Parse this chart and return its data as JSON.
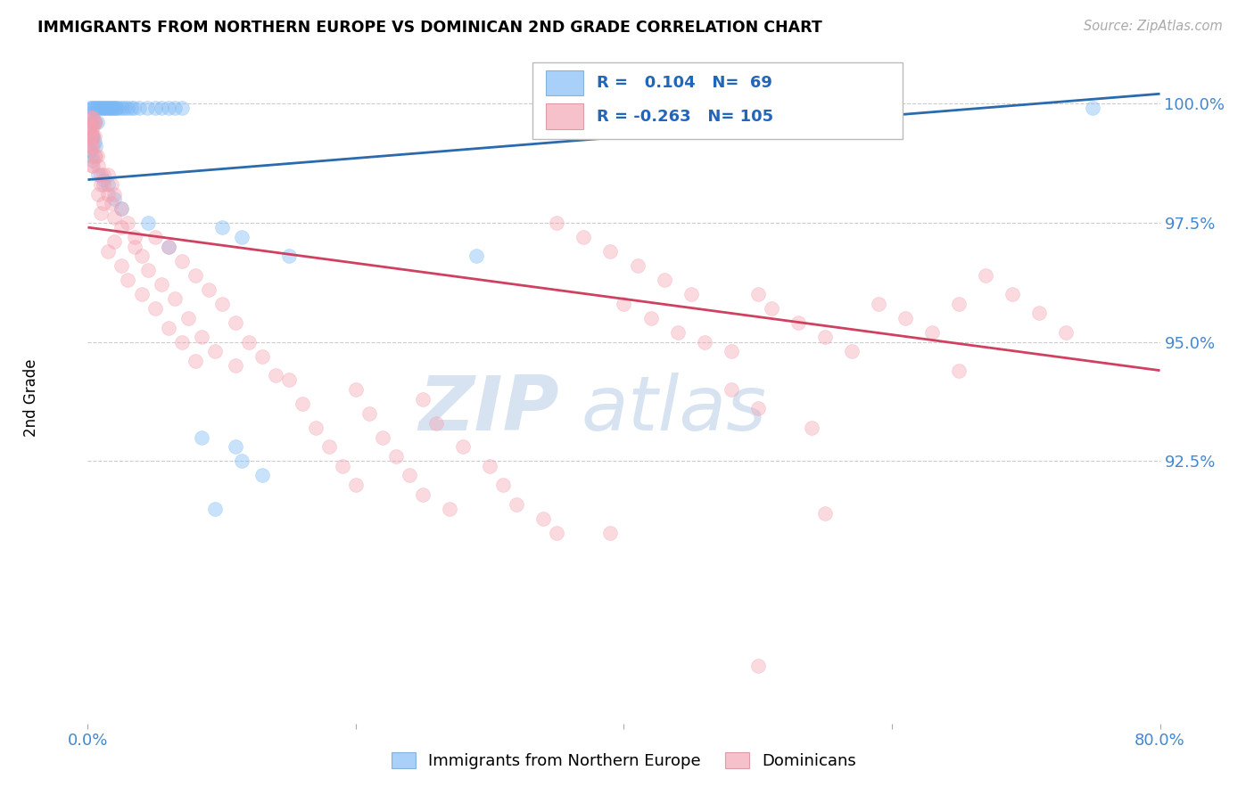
{
  "title": "IMMIGRANTS FROM NORTHERN EUROPE VS DOMINICAN 2ND GRADE CORRELATION CHART",
  "source": "Source: ZipAtlas.com",
  "ylabel": "2nd Grade",
  "ytick_labels": [
    "92.5%",
    "95.0%",
    "97.5%",
    "100.0%"
  ],
  "ytick_values": [
    0.925,
    0.95,
    0.975,
    1.0
  ],
  "xlim": [
    0.0,
    0.8
  ],
  "ylim": [
    0.87,
    1.01
  ],
  "legend_label1": "Immigrants from Northern Europe",
  "legend_label2": "Dominicans",
  "R1": "0.104",
  "N1": "69",
  "R2": "-0.263",
  "N2": "105",
  "blue_scatter": [
    [
      0.002,
      0.999
    ],
    [
      0.003,
      0.999
    ],
    [
      0.004,
      0.999
    ],
    [
      0.005,
      0.999
    ],
    [
      0.006,
      0.999
    ],
    [
      0.007,
      0.999
    ],
    [
      0.008,
      0.999
    ],
    [
      0.009,
      0.999
    ],
    [
      0.01,
      0.999
    ],
    [
      0.011,
      0.999
    ],
    [
      0.012,
      0.999
    ],
    [
      0.013,
      0.999
    ],
    [
      0.014,
      0.999
    ],
    [
      0.015,
      0.999
    ],
    [
      0.016,
      0.999
    ],
    [
      0.017,
      0.999
    ],
    [
      0.018,
      0.999
    ],
    [
      0.019,
      0.999
    ],
    [
      0.02,
      0.999
    ],
    [
      0.021,
      0.999
    ],
    [
      0.022,
      0.999
    ],
    [
      0.024,
      0.999
    ],
    [
      0.026,
      0.999
    ],
    [
      0.028,
      0.999
    ],
    [
      0.03,
      0.999
    ],
    [
      0.032,
      0.999
    ],
    [
      0.034,
      0.999
    ],
    [
      0.038,
      0.999
    ],
    [
      0.044,
      0.999
    ],
    [
      0.05,
      0.999
    ],
    [
      0.055,
      0.999
    ],
    [
      0.06,
      0.999
    ],
    [
      0.065,
      0.999
    ],
    [
      0.07,
      0.999
    ],
    [
      0.002,
      0.996
    ],
    [
      0.003,
      0.996
    ],
    [
      0.005,
      0.996
    ],
    [
      0.007,
      0.996
    ],
    [
      0.003,
      0.993
    ],
    [
      0.004,
      0.993
    ],
    [
      0.005,
      0.992
    ],
    [
      0.006,
      0.991
    ],
    [
      0.002,
      0.99
    ],
    [
      0.003,
      0.989
    ],
    [
      0.004,
      0.988
    ],
    [
      0.008,
      0.985
    ],
    [
      0.012,
      0.984
    ],
    [
      0.015,
      0.983
    ],
    [
      0.02,
      0.98
    ],
    [
      0.025,
      0.978
    ],
    [
      0.045,
      0.975
    ],
    [
      0.1,
      0.974
    ],
    [
      0.115,
      0.972
    ],
    [
      0.06,
      0.97
    ],
    [
      0.15,
      0.968
    ],
    [
      0.29,
      0.968
    ],
    [
      0.75,
      0.999
    ],
    [
      0.085,
      0.93
    ],
    [
      0.11,
      0.928
    ],
    [
      0.115,
      0.925
    ],
    [
      0.13,
      0.922
    ],
    [
      0.095,
      0.915
    ]
  ],
  "pink_scatter": [
    [
      0.002,
      0.997
    ],
    [
      0.003,
      0.997
    ],
    [
      0.004,
      0.997
    ],
    [
      0.005,
      0.996
    ],
    [
      0.006,
      0.996
    ],
    [
      0.001,
      0.995
    ],
    [
      0.002,
      0.995
    ],
    [
      0.003,
      0.995
    ],
    [
      0.004,
      0.995
    ],
    [
      0.001,
      0.993
    ],
    [
      0.002,
      0.993
    ],
    [
      0.003,
      0.993
    ],
    [
      0.004,
      0.993
    ],
    [
      0.005,
      0.993
    ],
    [
      0.001,
      0.991
    ],
    [
      0.002,
      0.991
    ],
    [
      0.003,
      0.991
    ],
    [
      0.004,
      0.991
    ],
    [
      0.005,
      0.989
    ],
    [
      0.006,
      0.989
    ],
    [
      0.007,
      0.989
    ],
    [
      0.003,
      0.987
    ],
    [
      0.004,
      0.987
    ],
    [
      0.008,
      0.987
    ],
    [
      0.01,
      0.985
    ],
    [
      0.012,
      0.985
    ],
    [
      0.015,
      0.985
    ],
    [
      0.01,
      0.983
    ],
    [
      0.012,
      0.983
    ],
    [
      0.018,
      0.983
    ],
    [
      0.008,
      0.981
    ],
    [
      0.015,
      0.981
    ],
    [
      0.02,
      0.981
    ],
    [
      0.012,
      0.979
    ],
    [
      0.018,
      0.979
    ],
    [
      0.025,
      0.978
    ],
    [
      0.01,
      0.977
    ],
    [
      0.02,
      0.976
    ],
    [
      0.03,
      0.975
    ],
    [
      0.025,
      0.974
    ],
    [
      0.035,
      0.972
    ],
    [
      0.05,
      0.972
    ],
    [
      0.02,
      0.971
    ],
    [
      0.035,
      0.97
    ],
    [
      0.06,
      0.97
    ],
    [
      0.015,
      0.969
    ],
    [
      0.04,
      0.968
    ],
    [
      0.07,
      0.967
    ],
    [
      0.025,
      0.966
    ],
    [
      0.045,
      0.965
    ],
    [
      0.08,
      0.964
    ],
    [
      0.03,
      0.963
    ],
    [
      0.055,
      0.962
    ],
    [
      0.09,
      0.961
    ],
    [
      0.04,
      0.96
    ],
    [
      0.065,
      0.959
    ],
    [
      0.1,
      0.958
    ],
    [
      0.05,
      0.957
    ],
    [
      0.075,
      0.955
    ],
    [
      0.11,
      0.954
    ],
    [
      0.06,
      0.953
    ],
    [
      0.085,
      0.951
    ],
    [
      0.12,
      0.95
    ],
    [
      0.07,
      0.95
    ],
    [
      0.095,
      0.948
    ],
    [
      0.13,
      0.947
    ],
    [
      0.08,
      0.946
    ],
    [
      0.11,
      0.945
    ],
    [
      0.14,
      0.943
    ],
    [
      0.15,
      0.942
    ],
    [
      0.2,
      0.94
    ],
    [
      0.25,
      0.938
    ],
    [
      0.16,
      0.937
    ],
    [
      0.21,
      0.935
    ],
    [
      0.26,
      0.933
    ],
    [
      0.17,
      0.932
    ],
    [
      0.22,
      0.93
    ],
    [
      0.28,
      0.928
    ],
    [
      0.18,
      0.928
    ],
    [
      0.23,
      0.926
    ],
    [
      0.3,
      0.924
    ],
    [
      0.19,
      0.924
    ],
    [
      0.24,
      0.922
    ],
    [
      0.31,
      0.92
    ],
    [
      0.2,
      0.92
    ],
    [
      0.25,
      0.918
    ],
    [
      0.32,
      0.916
    ],
    [
      0.27,
      0.915
    ],
    [
      0.34,
      0.913
    ],
    [
      0.39,
      0.91
    ],
    [
      0.35,
      0.975
    ],
    [
      0.37,
      0.972
    ],
    [
      0.39,
      0.969
    ],
    [
      0.41,
      0.966
    ],
    [
      0.43,
      0.963
    ],
    [
      0.45,
      0.96
    ],
    [
      0.4,
      0.958
    ],
    [
      0.42,
      0.955
    ],
    [
      0.44,
      0.952
    ],
    [
      0.46,
      0.95
    ],
    [
      0.48,
      0.948
    ],
    [
      0.5,
      0.96
    ],
    [
      0.51,
      0.957
    ],
    [
      0.53,
      0.954
    ],
    [
      0.55,
      0.951
    ],
    [
      0.57,
      0.948
    ],
    [
      0.59,
      0.958
    ],
    [
      0.61,
      0.955
    ],
    [
      0.63,
      0.952
    ],
    [
      0.65,
      0.958
    ],
    [
      0.67,
      0.964
    ],
    [
      0.69,
      0.96
    ],
    [
      0.71,
      0.956
    ],
    [
      0.73,
      0.952
    ],
    [
      0.35,
      0.91
    ],
    [
      0.55,
      0.914
    ],
    [
      0.65,
      0.944
    ],
    [
      0.48,
      0.94
    ],
    [
      0.5,
      0.936
    ],
    [
      0.54,
      0.932
    ],
    [
      0.5,
      0.882
    ]
  ],
  "blue_line_x": [
    0.0,
    0.8
  ],
  "blue_line_y": [
    0.984,
    1.002
  ],
  "pink_line_x": [
    0.0,
    0.8
  ],
  "pink_line_y": [
    0.974,
    0.944
  ],
  "scatter_size": 130,
  "scatter_alpha": 0.4,
  "blue_color": "#7ab8f5",
  "pink_color": "#f4a0b0",
  "blue_line_color": "#2a6aad",
  "pink_line_color": "#d04060",
  "watermark_zip": "ZIP",
  "watermark_atlas": "atlas",
  "background_color": "#ffffff"
}
